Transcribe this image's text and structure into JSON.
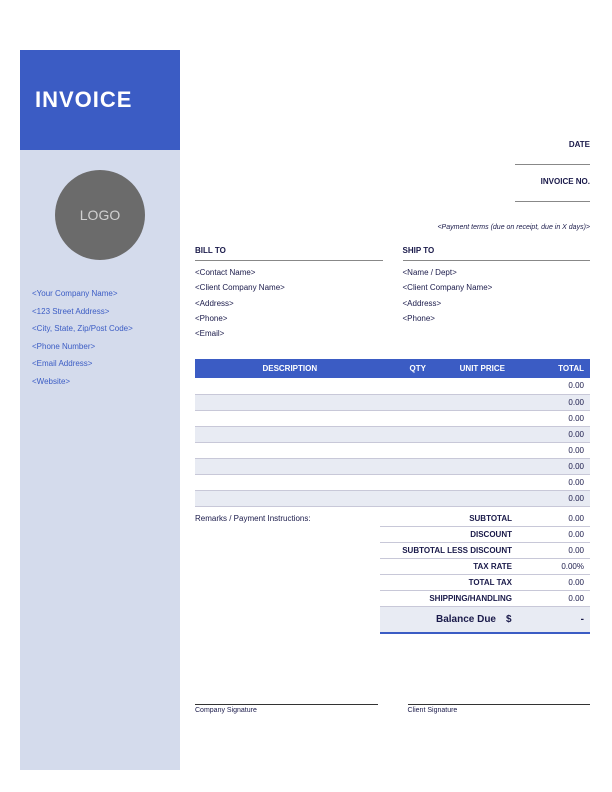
{
  "title": "INVOICE",
  "logo_text": "LOGO",
  "colors": {
    "primary": "#3b5cc4",
    "sidebar_bg": "#d4dbec",
    "logo_bg": "#6b6b6b",
    "text_dark": "#1a1a4a",
    "row_alt": "#e8ebf3",
    "border": "#c8c8d8"
  },
  "company": {
    "name": "<Your Company Name>",
    "address": "<123 Street Address>",
    "city": "<City, State, Zip/Post Code>",
    "phone": "<Phone Number>",
    "email": "<Email Address>",
    "website": "<Website>"
  },
  "meta": {
    "date_label": "DATE",
    "invoice_no_label": "INVOICE NO.",
    "payment_terms": "<Payment terms (due on receipt, due in X days)>"
  },
  "bill_to": {
    "heading": "BILL TO",
    "contact": "<Contact Name>",
    "company": "<Client Company Name>",
    "address": "<Address>",
    "phone": "<Phone>",
    "email": "<Email>"
  },
  "ship_to": {
    "heading": "SHIP TO",
    "name": "<Name / Dept>",
    "company": "<Client Company Name>",
    "address": "<Address>",
    "phone": "<Phone>"
  },
  "table": {
    "headers": {
      "desc": "DESCRIPTION",
      "qty": "QTY",
      "unit": "UNIT PRICE",
      "total": "TOTAL"
    },
    "rows": [
      {
        "desc": "",
        "qty": "",
        "unit": "",
        "total": "0.00"
      },
      {
        "desc": "",
        "qty": "",
        "unit": "",
        "total": "0.00"
      },
      {
        "desc": "",
        "qty": "",
        "unit": "",
        "total": "0.00"
      },
      {
        "desc": "",
        "qty": "",
        "unit": "",
        "total": "0.00"
      },
      {
        "desc": "",
        "qty": "",
        "unit": "",
        "total": "0.00"
      },
      {
        "desc": "",
        "qty": "",
        "unit": "",
        "total": "0.00"
      },
      {
        "desc": "",
        "qty": "",
        "unit": "",
        "total": "0.00"
      },
      {
        "desc": "",
        "qty": "",
        "unit": "",
        "total": "0.00"
      }
    ]
  },
  "remarks_label": "Remarks / Payment Instructions:",
  "totals": {
    "subtotal": {
      "label": "SUBTOTAL",
      "value": "0.00"
    },
    "discount": {
      "label": "DISCOUNT",
      "value": "0.00"
    },
    "subtotal_less": {
      "label": "SUBTOTAL LESS DISCOUNT",
      "value": "0.00"
    },
    "tax_rate": {
      "label": "TAX RATE",
      "value": "0.00%"
    },
    "total_tax": {
      "label": "TOTAL TAX",
      "value": "0.00"
    },
    "shipping": {
      "label": "SHIPPING/HANDLING",
      "value": "0.00"
    },
    "balance": {
      "label": "Balance Due",
      "currency": "$",
      "value": "-"
    }
  },
  "signatures": {
    "company": "Company Signature",
    "client": "Client Signature"
  }
}
